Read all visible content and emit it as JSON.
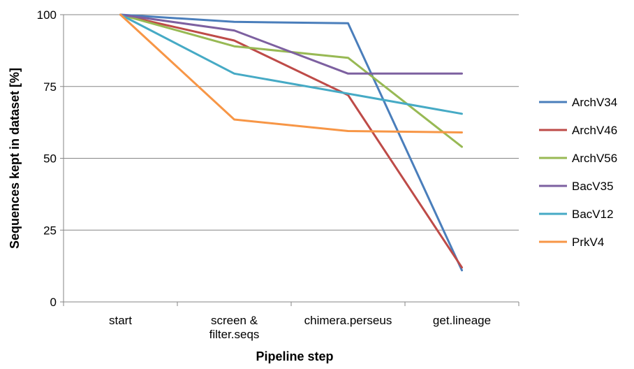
{
  "chart_data": {
    "type": "line",
    "title": "",
    "xlabel": "Pipeline step",
    "ylabel": "Sequences kept in dataset [%]",
    "categories": [
      "start",
      "screen & filter.seqs",
      "chimera.perseus",
      "get.lineage"
    ],
    "category_lines": [
      [
        "start"
      ],
      [
        "screen &",
        "filter.seqs"
      ],
      [
        "chimera.perseus"
      ],
      [
        "get.lineage"
      ]
    ],
    "ylim": [
      0,
      100
    ],
    "yticks": [
      0,
      25,
      50,
      75,
      100
    ],
    "grid": true,
    "legend_position": "right",
    "series": [
      {
        "name": "ArchV34",
        "color": "#4a7ebb",
        "values": [
          100,
          97.5,
          97,
          11
        ]
      },
      {
        "name": "ArchV46",
        "color": "#be4b48",
        "values": [
          100,
          91,
          72,
          12
        ]
      },
      {
        "name": "ArchV56",
        "color": "#98b954",
        "values": [
          100,
          89,
          85,
          54
        ]
      },
      {
        "name": "BacV35",
        "color": "#7d60a0",
        "values": [
          100,
          94.5,
          79.5,
          79.5
        ]
      },
      {
        "name": "BacV12",
        "color": "#46aac5",
        "values": [
          100,
          79.5,
          72.5,
          65.5
        ]
      },
      {
        "name": "PrkV4",
        "color": "#f79646",
        "values": [
          100,
          63.5,
          59.5,
          59
        ]
      }
    ]
  }
}
